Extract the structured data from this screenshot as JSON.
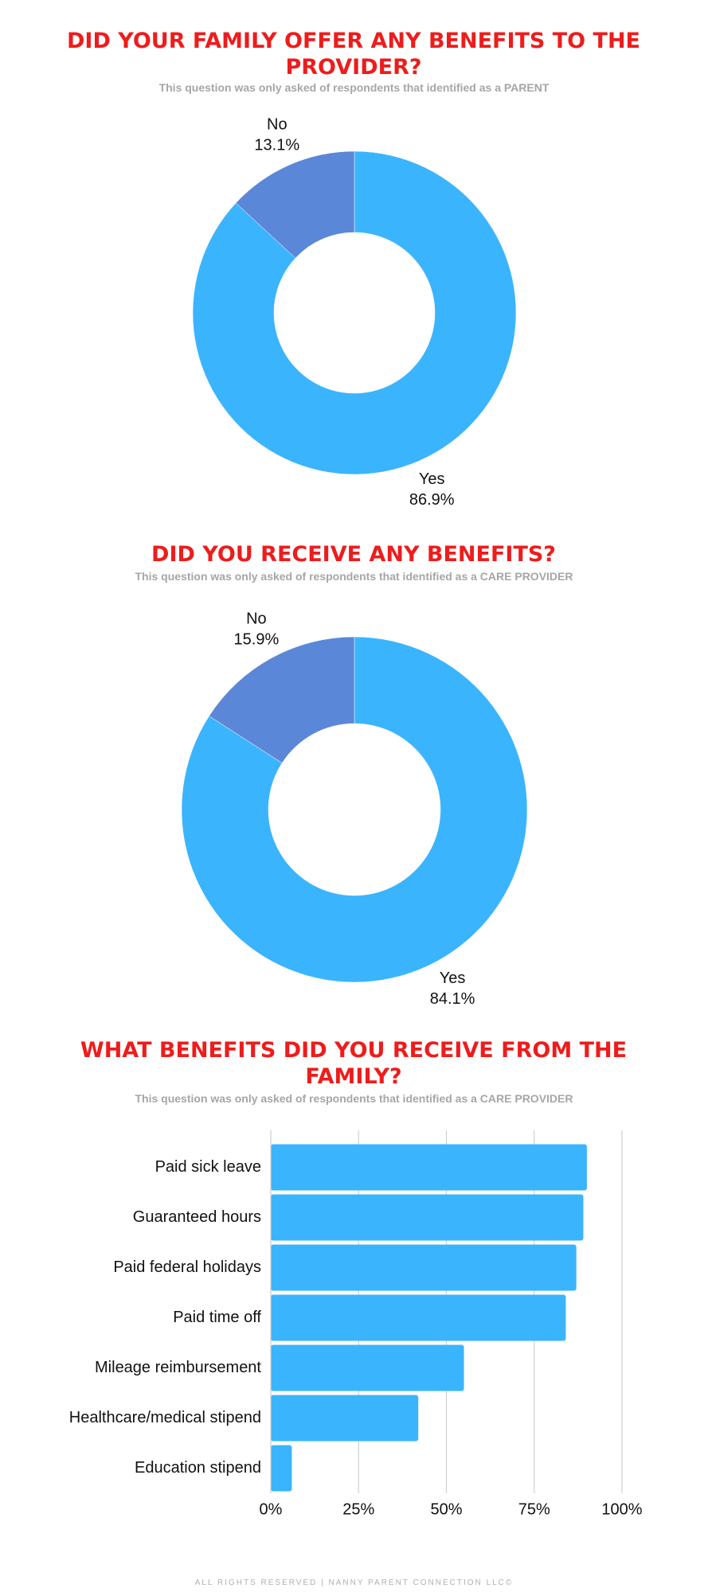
{
  "chart_data": [
    {
      "type": "pie",
      "title": "DID YOUR FAMILY OFFER ANY BENEFITS TO THE PROVIDER?",
      "subtitle": "This question was only asked of respondents that identified as a PARENT",
      "categories": [
        "Yes",
        "No"
      ],
      "values": [
        86.9,
        13.1
      ],
      "value_labels": [
        "86.9%",
        "13.1%"
      ],
      "colors": [
        "#3bb4fe",
        "#5b87d8"
      ],
      "donut": true
    },
    {
      "type": "pie",
      "title": "DID YOU RECEIVE ANY BENEFITS?",
      "subtitle": "This question was only asked of respondents that identified as a CARE PROVIDER",
      "categories": [
        "Yes",
        "No"
      ],
      "values": [
        84.1,
        15.9
      ],
      "value_labels": [
        "84.1%",
        "15.9%"
      ],
      "colors": [
        "#3bb4fe",
        "#5b87d8"
      ],
      "donut": true
    },
    {
      "type": "barh",
      "title": "WHAT BENEFITS DID YOU RECEIVE FROM THE FAMILY?",
      "subtitle": "This question was only asked of respondents that identified as a CARE PROVIDER",
      "categories": [
        "Paid sick leave",
        "Guaranteed hours",
        "Paid federal holidays",
        "Paid time off",
        "Mileage reimbursement",
        "Healthcare/medical stipend",
        "Education stipend"
      ],
      "values": [
        90,
        89,
        87,
        84,
        55,
        42,
        6
      ],
      "color": "#3bb4fe",
      "xlim": [
        0,
        100
      ],
      "xticks": [
        {
          "value": 0,
          "label": "0%"
        },
        {
          "value": 25,
          "label": "25%"
        },
        {
          "value": 50,
          "label": "50%"
        },
        {
          "value": 75,
          "label": "75%"
        },
        {
          "value": 100,
          "label": "100%"
        }
      ],
      "grid": true
    }
  ],
  "footer": "ALL RIGHTS RESERVED | NANNY PARENT CONNECTION LLC©"
}
